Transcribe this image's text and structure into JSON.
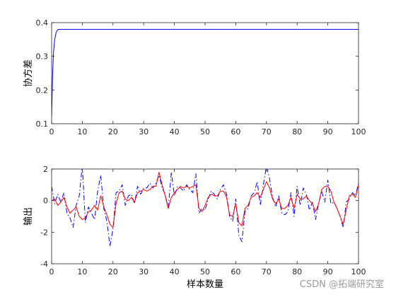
{
  "watermark": "CSDN @拓端研究室",
  "chart_data": [
    {
      "type": "line",
      "ylabel": "协方差",
      "xlabel": "",
      "xlim": [
        0,
        100
      ],
      "ylim": [
        0.1,
        0.4
      ],
      "xticks": [
        0,
        10,
        20,
        30,
        40,
        50,
        60,
        70,
        80,
        90,
        100
      ],
      "yticks": [
        0.1,
        0.2,
        0.3,
        0.4
      ],
      "ytick_labels": [
        "0.1",
        "0.2",
        "0.3",
        "0.4"
      ],
      "grid": false,
      "series": [
        {
          "color": "#0000ff",
          "style": "solid",
          "x": [
            0,
            0.3,
            0.6,
            1.0,
            1.5,
            2.0,
            2.5,
            3.0,
            100
          ],
          "y": [
            0.12,
            0.24,
            0.31,
            0.35,
            0.372,
            0.379,
            0.38,
            0.38,
            0.38
          ]
        }
      ]
    },
    {
      "type": "line",
      "ylabel": "输出",
      "xlabel": "样本数量",
      "xlim": [
        0,
        100
      ],
      "ylim": [
        -4,
        2
      ],
      "xticks": [
        0,
        10,
        20,
        30,
        40,
        50,
        60,
        70,
        80,
        90,
        100
      ],
      "yticks": [
        -4,
        -2,
        0,
        2
      ],
      "ytick_labels": [
        "-4",
        "-2",
        "0",
        "2"
      ],
      "grid": false,
      "series": [
        {
          "color": "#0000ff",
          "style": "dashdot",
          "x": [
            0,
            1,
            2,
            3,
            4,
            5,
            6,
            7,
            8,
            9,
            10,
            11,
            12,
            13,
            14,
            15,
            16,
            17,
            18,
            19,
            20,
            21,
            22,
            23,
            24,
            25,
            26,
            27,
            28,
            29,
            30,
            31,
            32,
            33,
            34,
            35,
            36,
            37,
            38,
            39,
            40,
            41,
            42,
            43,
            44,
            45,
            46,
            47,
            48,
            49,
            50,
            51,
            52,
            53,
            54,
            55,
            56,
            57,
            58,
            59,
            60,
            61,
            62,
            63,
            64,
            65,
            66,
            67,
            68,
            69,
            70,
            71,
            72,
            73,
            74,
            75,
            76,
            77,
            78,
            79,
            80,
            81,
            82,
            83,
            84,
            85,
            86,
            87,
            88,
            89,
            90,
            91,
            92,
            93,
            94,
            95,
            96,
            97,
            98,
            99,
            100
          ],
          "y": [
            0.9,
            -0.2,
            0.4,
            -0.1,
            0.5,
            -0.8,
            -1.1,
            -1.7,
            -0.3,
            0.3,
            2.2,
            -1.4,
            -0.4,
            -0.8,
            -1.2,
            0.6,
            1.6,
            -0.5,
            -1.3,
            -2.9,
            -1.8,
            0.5,
            0.6,
            1.0,
            -0.3,
            0.3,
            0.4,
            -0.2,
            0.9,
            0.4,
            0.8,
            0.8,
            1.1,
            0.8,
            1.1,
            1.6,
            0.8,
            0.4,
            -0.5,
            1.8,
            0.3,
            0.9,
            0.8,
            0.6,
            1.0,
            0.7,
            0.5,
            1.7,
            -0.8,
            -0.5,
            -0.6,
            0.1,
            0.6,
            0.4,
            0.1,
            0.7,
            1.0,
            0.4,
            -1.0,
            -1.3,
            0.1,
            -2.2,
            -2.6,
            -0.7,
            -0.5,
            0.3,
            0.5,
            1.2,
            -0.3,
            1.0,
            2.2,
            1.4,
            0.2,
            -0.4,
            0.3,
            -0.8,
            -0.9,
            -0.7,
            0.5,
            -1.0,
            0.9,
            -0.3,
            0.8,
            0.4,
            -0.6,
            -0.1,
            -1.2,
            -0.2,
            0.6,
            -0.1,
            1.3,
            -0.2,
            -0.1,
            -0.5,
            -1.0,
            -1.7,
            -0.1,
            0.1,
            0.5,
            0.3,
            1.1
          ]
        },
        {
          "color": "#ff0000",
          "style": "solid",
          "x": [
            0,
            1,
            2,
            3,
            4,
            5,
            6,
            7,
            8,
            9,
            10,
            11,
            12,
            13,
            14,
            15,
            16,
            17,
            18,
            19,
            20,
            21,
            22,
            23,
            24,
            25,
            26,
            27,
            28,
            29,
            30,
            31,
            32,
            33,
            34,
            35,
            36,
            37,
            38,
            39,
            40,
            41,
            42,
            43,
            44,
            45,
            46,
            47,
            48,
            49,
            50,
            51,
            52,
            53,
            54,
            55,
            56,
            57,
            58,
            59,
            60,
            61,
            62,
            63,
            64,
            65,
            66,
            67,
            68,
            69,
            70,
            71,
            72,
            73,
            74,
            75,
            76,
            77,
            78,
            79,
            80,
            81,
            82,
            83,
            84,
            85,
            86,
            87,
            88,
            89,
            90,
            91,
            92,
            93,
            94,
            95,
            96,
            97,
            98,
            99,
            100
          ],
          "y": [
            0.0,
            0.1,
            -0.3,
            -0.1,
            0.2,
            -0.4,
            -0.8,
            -0.6,
            -0.4,
            -1.0,
            -1.2,
            -1.1,
            -0.7,
            -0.6,
            -0.3,
            -0.6,
            0.3,
            -0.4,
            -0.9,
            -1.5,
            -1.7,
            -0.2,
            0.5,
            0.6,
            0.1,
            0.0,
            0.2,
            -0.1,
            0.5,
            0.6,
            0.7,
            0.6,
            0.7,
            0.9,
            0.9,
            1.8,
            1.0,
            0.3,
            -0.5,
            0.2,
            0.5,
            0.7,
            0.9,
            0.8,
            0.9,
            0.8,
            0.9,
            1.0,
            -0.5,
            -0.7,
            -0.3,
            0.2,
            0.4,
            0.3,
            0.3,
            0.6,
            0.6,
            0.2,
            -0.9,
            -1.0,
            -0.2,
            -1.4,
            -1.6,
            -0.5,
            -0.3,
            0.2,
            0.3,
            0.5,
            0.2,
            0.7,
            1.2,
            0.8,
            0.1,
            -0.2,
            0.1,
            -0.5,
            -0.5,
            -0.3,
            0.2,
            -0.5,
            0.4,
            0.1,
            0.1,
            0.3,
            0.0,
            -0.2,
            -0.7,
            -0.2,
            0.7,
            0.9,
            0.9,
            0.6,
            -0.1,
            -0.5,
            -1.0,
            -1.5,
            -0.6,
            0.3,
            0.4,
            0.2,
            1.0
          ]
        }
      ]
    }
  ]
}
